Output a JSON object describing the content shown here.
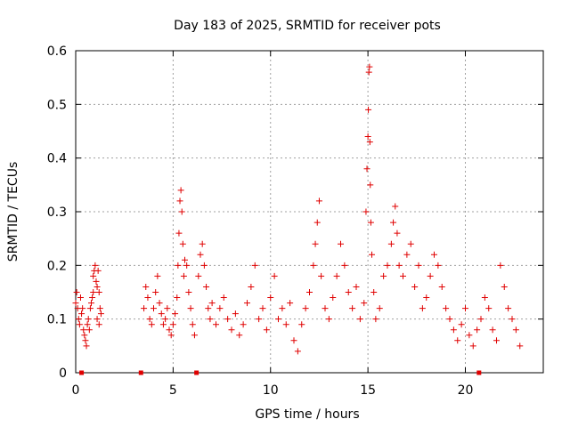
{
  "chart_data": {
    "type": "scatter",
    "title": "Day 183 of 2025, SRMTID for receiver pots",
    "xlabel": "GPS time / hours",
    "ylabel": "SRMTID / TECUs",
    "xlim": [
      0,
      24
    ],
    "ylim": [
      0,
      0.6
    ],
    "x_ticks": [
      0,
      5,
      10,
      15,
      20
    ],
    "x_tick_labels": [
      "0",
      "5",
      "10",
      "15",
      "20"
    ],
    "y_ticks": [
      0,
      0.1,
      0.2,
      0.3,
      0.4,
      0.5,
      0.6
    ],
    "y_tick_labels": [
      "0",
      "0.1",
      "0.2",
      "0.3",
      "0.4",
      "0.5",
      "0.6"
    ],
    "grid": true,
    "marker": "+",
    "color": "#e00000",
    "outage_markers_x": [
      0.3,
      3.35,
      6.2,
      20.7
    ],
    "series": [
      {
        "name": "SRMTID",
        "points": [
          [
            0.0,
            0.13
          ],
          [
            0.05,
            0.15
          ],
          [
            0.1,
            0.12
          ],
          [
            0.15,
            0.1
          ],
          [
            0.2,
            0.09
          ],
          [
            0.25,
            0.14
          ],
          [
            0.3,
            0.11
          ],
          [
            0.35,
            0.12
          ],
          [
            0.4,
            0.08
          ],
          [
            0.45,
            0.07
          ],
          [
            0.5,
            0.06
          ],
          [
            0.55,
            0.05
          ],
          [
            0.6,
            0.09
          ],
          [
            0.65,
            0.1
          ],
          [
            0.7,
            0.08
          ],
          [
            0.75,
            0.12
          ],
          [
            0.8,
            0.13
          ],
          [
            0.85,
            0.14
          ],
          [
            0.9,
            0.18
          ],
          [
            0.95,
            0.19
          ],
          [
            1.0,
            0.2
          ],
          [
            1.05,
            0.17
          ],
          [
            1.1,
            0.16
          ],
          [
            1.15,
            0.19
          ],
          [
            1.2,
            0.15
          ],
          [
            1.25,
            0.12
          ],
          [
            1.3,
            0.11
          ],
          [
            1.2,
            0.09
          ],
          [
            1.1,
            0.1
          ],
          [
            0.9,
            0.15
          ],
          [
            3.5,
            0.12
          ],
          [
            3.6,
            0.16
          ],
          [
            3.7,
            0.14
          ],
          [
            3.8,
            0.1
          ],
          [
            3.9,
            0.09
          ],
          [
            4.0,
            0.12
          ],
          [
            4.1,
            0.15
          ],
          [
            4.2,
            0.18
          ],
          [
            4.3,
            0.13
          ],
          [
            4.4,
            0.11
          ],
          [
            4.5,
            0.09
          ],
          [
            4.6,
            0.1
          ],
          [
            4.7,
            0.12
          ],
          [
            4.8,
            0.08
          ],
          [
            4.9,
            0.07
          ],
          [
            5.0,
            0.09
          ],
          [
            5.1,
            0.11
          ],
          [
            5.2,
            0.14
          ],
          [
            5.25,
            0.2
          ],
          [
            5.3,
            0.26
          ],
          [
            5.35,
            0.32
          ],
          [
            5.4,
            0.34
          ],
          [
            5.45,
            0.3
          ],
          [
            5.5,
            0.24
          ],
          [
            5.55,
            0.18
          ],
          [
            5.6,
            0.21
          ],
          [
            5.7,
            0.2
          ],
          [
            5.8,
            0.15
          ],
          [
            5.9,
            0.12
          ],
          [
            6.0,
            0.09
          ],
          [
            6.1,
            0.07
          ],
          [
            6.3,
            0.18
          ],
          [
            6.4,
            0.22
          ],
          [
            6.5,
            0.24
          ],
          [
            6.6,
            0.2
          ],
          [
            6.7,
            0.16
          ],
          [
            6.8,
            0.12
          ],
          [
            6.9,
            0.1
          ],
          [
            7.0,
            0.13
          ],
          [
            7.2,
            0.09
          ],
          [
            7.4,
            0.12
          ],
          [
            7.6,
            0.14
          ],
          [
            7.8,
            0.1
          ],
          [
            8.0,
            0.08
          ],
          [
            8.2,
            0.11
          ],
          [
            8.4,
            0.07
          ],
          [
            8.6,
            0.09
          ],
          [
            8.8,
            0.13
          ],
          [
            9.0,
            0.16
          ],
          [
            9.2,
            0.2
          ],
          [
            9.4,
            0.1
          ],
          [
            9.6,
            0.12
          ],
          [
            9.8,
            0.08
          ],
          [
            10.0,
            0.14
          ],
          [
            10.2,
            0.18
          ],
          [
            10.4,
            0.1
          ],
          [
            10.6,
            0.12
          ],
          [
            10.8,
            0.09
          ],
          [
            11.0,
            0.13
          ],
          [
            11.2,
            0.06
          ],
          [
            11.4,
            0.04
          ],
          [
            11.6,
            0.09
          ],
          [
            11.8,
            0.12
          ],
          [
            12.0,
            0.15
          ],
          [
            12.2,
            0.2
          ],
          [
            12.3,
            0.24
          ],
          [
            12.4,
            0.28
          ],
          [
            12.5,
            0.32
          ],
          [
            12.6,
            0.18
          ],
          [
            12.8,
            0.12
          ],
          [
            13.0,
            0.1
          ],
          [
            13.2,
            0.14
          ],
          [
            13.4,
            0.18
          ],
          [
            13.6,
            0.24
          ],
          [
            13.8,
            0.2
          ],
          [
            14.0,
            0.15
          ],
          [
            14.2,
            0.12
          ],
          [
            14.4,
            0.16
          ],
          [
            14.6,
            0.1
          ],
          [
            14.8,
            0.13
          ],
          [
            14.9,
            0.3
          ],
          [
            14.95,
            0.38
          ],
          [
            15.0,
            0.44
          ],
          [
            15.02,
            0.49
          ],
          [
            15.05,
            0.56
          ],
          [
            15.08,
            0.57
          ],
          [
            15.1,
            0.43
          ],
          [
            15.12,
            0.35
          ],
          [
            15.15,
            0.28
          ],
          [
            15.2,
            0.22
          ],
          [
            15.3,
            0.15
          ],
          [
            15.4,
            0.1
          ],
          [
            15.6,
            0.12
          ],
          [
            15.8,
            0.18
          ],
          [
            16.0,
            0.2
          ],
          [
            16.2,
            0.24
          ],
          [
            16.3,
            0.28
          ],
          [
            16.4,
            0.31
          ],
          [
            16.5,
            0.26
          ],
          [
            16.6,
            0.2
          ],
          [
            16.8,
            0.18
          ],
          [
            17.0,
            0.22
          ],
          [
            17.2,
            0.24
          ],
          [
            17.4,
            0.16
          ],
          [
            17.6,
            0.2
          ],
          [
            17.8,
            0.12
          ],
          [
            18.0,
            0.14
          ],
          [
            18.2,
            0.18
          ],
          [
            18.4,
            0.22
          ],
          [
            18.6,
            0.2
          ],
          [
            18.8,
            0.16
          ],
          [
            19.0,
            0.12
          ],
          [
            19.2,
            0.1
          ],
          [
            19.4,
            0.08
          ],
          [
            19.6,
            0.06
          ],
          [
            19.8,
            0.09
          ],
          [
            20.0,
            0.12
          ],
          [
            20.2,
            0.07
          ],
          [
            20.4,
            0.05
          ],
          [
            20.6,
            0.08
          ],
          [
            20.8,
            0.1
          ],
          [
            21.0,
            0.14
          ],
          [
            21.2,
            0.12
          ],
          [
            21.4,
            0.08
          ],
          [
            21.6,
            0.06
          ],
          [
            21.8,
            0.2
          ],
          [
            22.0,
            0.16
          ],
          [
            22.2,
            0.12
          ],
          [
            22.4,
            0.1
          ],
          [
            22.6,
            0.08
          ],
          [
            22.8,
            0.05
          ]
        ]
      }
    ]
  }
}
